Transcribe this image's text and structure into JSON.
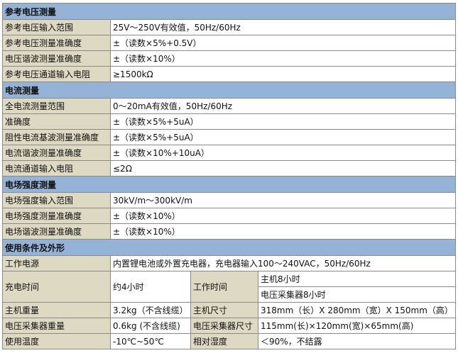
{
  "sections": [
    {
      "title": "参考电压测量",
      "rows": [
        {
          "label": "参考电压输入范围",
          "value": "25V～250V有效值，50Hz/60Hz"
        },
        {
          "label": "参考电压测量准确度",
          "value": "±（读数×5%+0.5V）"
        },
        {
          "label": "电压谐波测量准确度",
          "value": "±（读数×10%）"
        },
        {
          "label": "参考电压通道输入电阻",
          "value": "≥1500kΩ"
        }
      ]
    },
    {
      "title": "电流测量",
      "rows": [
        {
          "label": "全电流测量范围",
          "value": "0～20mA有效值，50Hz/60Hz"
        },
        {
          "label": "准确度",
          "value": "±（读数×5%+5uA）"
        },
        {
          "label": "阻性电流基波测量准确度",
          "value": "±（读数×5%+5uA）"
        },
        {
          "label": "电流谐波测量准确度",
          "value": "±（读数×10%+10uA）"
        },
        {
          "label": "电流通道输入电阻",
          "value": "≤2Ω"
        }
      ]
    },
    {
      "title": "电场强度测量",
      "rows": [
        {
          "label": "电场强度输入范围",
          "value": "30kV/m～300kV/m"
        },
        {
          "label": "电场强度测量准确度",
          "value": "±（读数×10%）"
        },
        {
          "label": "电场谐波测量准确度",
          "value": "±（读数×10%）"
        }
      ]
    }
  ],
  "conditions": {
    "title": "使用条件及外形",
    "power_label": "工作电源",
    "power_value": "内置锂电池或外置充电器，充电器输入100～240VAC，50Hz/60Hz",
    "charge_label": "充电时间",
    "charge_value": "约4小时",
    "work_label": "工作时间",
    "work_host": "主机8小时",
    "work_collector": "电压采集器8小时",
    "host_weight_label": "主机重量",
    "host_weight_value": "3.2kg（不含线缆）",
    "host_size_label": "主机尺寸",
    "host_size_value": "318mm（长）X 280mm（宽）X 150mm（高）",
    "col_weight_label": "电压采集器重量",
    "col_weight_value": "0.6kg (不含线缆)",
    "col_size_label": "电压采集器尺寸",
    "col_size_value": "115mm(长)×120mm(宽)×65mm(高)",
    "temp_label": "使用温度",
    "temp_value": "-10℃~50℃",
    "hum_label": "相对湿度",
    "hum_value": "＜90%，不结露"
  }
}
